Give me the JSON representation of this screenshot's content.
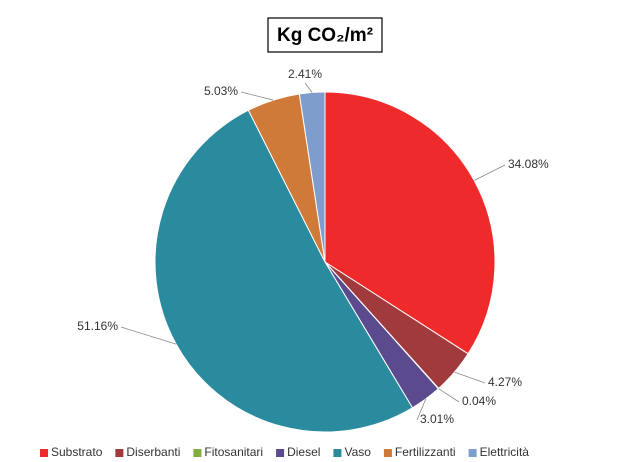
{
  "chart_data": {
    "type": "pie",
    "title": "Kg CO₂/m²",
    "categories": [
      "Substrato",
      "Diserbanti",
      "Fitosanitari",
      "Diesel",
      "Vaso",
      "Fertilizzanti",
      "Elettricità"
    ],
    "values": [
      34.08,
      4.27,
      0.04,
      3.01,
      51.16,
      5.03,
      2.41
    ],
    "value_labels": [
      "34.08%",
      "4.27%",
      "0.04%",
      "3.01%",
      "51.16%",
      "5.03%",
      "2.41%"
    ],
    "colors": [
      "#ee2a2a",
      "#a03a3d",
      "#7fae3e",
      "#5b4a8e",
      "#2a8a9e",
      "#d07a3a",
      "#7e9ccc"
    ],
    "legend": "bottom"
  }
}
